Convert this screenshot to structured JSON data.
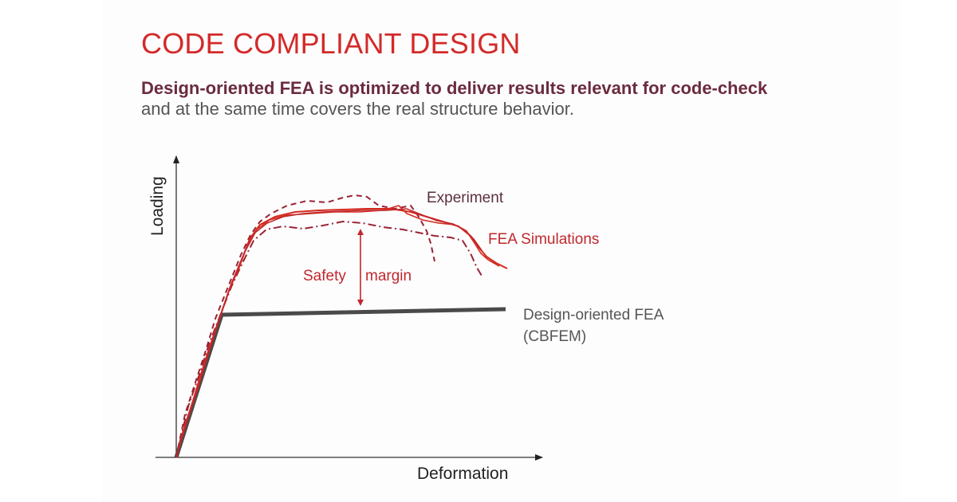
{
  "title": "CODE COMPLIANT DESIGN",
  "subtitle": {
    "line1": "Design-oriented FEA is optimized to deliver results relevant for code-check",
    "line2": "and at the same time covers the real structure behavior."
  },
  "diagram": {
    "y_axis_label": "Loading",
    "x_axis_label": "Deformation",
    "experiment_label": "Experiment",
    "fea_label": "FEA Simulations",
    "safety_label_1": "Safety",
    "safety_label_2": "margin",
    "cbfem_label_1": "Design-oriented FEA",
    "cbfem_label_2": "(CBFEM)"
  },
  "colors": {
    "title": "#d42a2a",
    "subtitle_bold": "#6b2b3e",
    "subtitle_normal": "#555555",
    "experiment": "#9b2335",
    "simulation": "#d42a1e",
    "cbfem": "#4a4a4a",
    "axis": "#333333"
  }
}
